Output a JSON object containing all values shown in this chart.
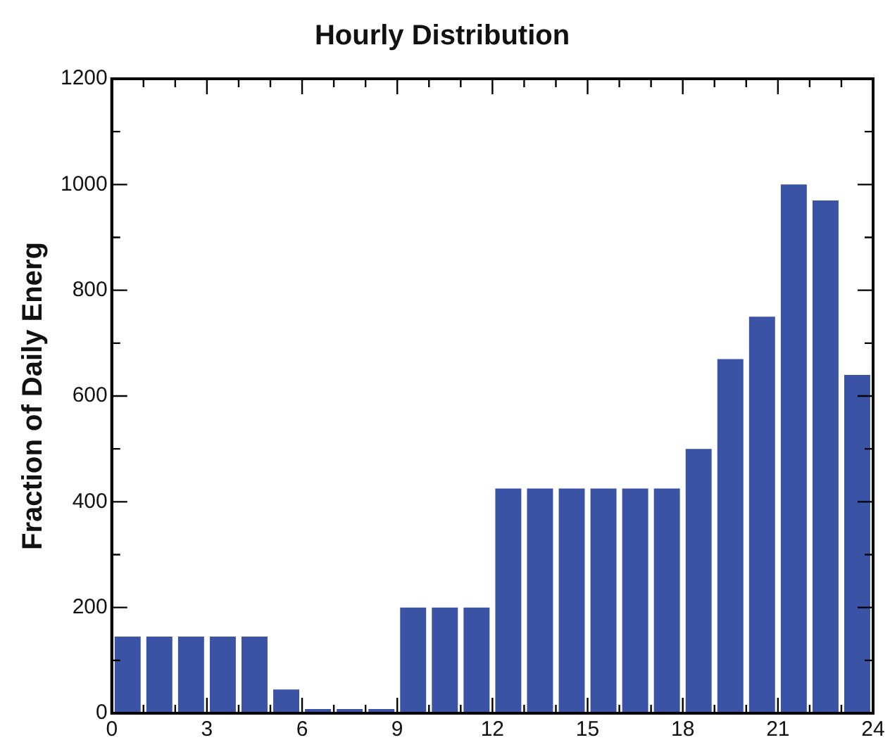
{
  "chart_data": {
    "type": "histogram",
    "title": "Hourly Distribution",
    "ylabel": "Fraction of Daily Energ",
    "bins": [
      0,
      1,
      2,
      3,
      4,
      5,
      6,
      7,
      8,
      9,
      10,
      11,
      12,
      13,
      14,
      15,
      16,
      17,
      18,
      19,
      20,
      21,
      22,
      23,
      24
    ],
    "values": [
      145,
      145,
      145,
      145,
      145,
      45,
      8,
      8,
      8,
      200,
      200,
      200,
      425,
      425,
      425,
      425,
      425,
      425,
      500,
      670,
      750,
      1000,
      970,
      640
    ],
    "color": "#3a53a4",
    "xlim": [
      0,
      24
    ],
    "xticks": [
      0,
      {
        "value": 1,
        "label": null
      },
      {
        "value": 2,
        "label": null
      },
      3,
      {
        "value": 4,
        "label": null
      },
      {
        "value": 5,
        "label": null
      },
      6,
      {
        "value": 7,
        "label": null
      },
      {
        "value": 8,
        "label": null
      },
      9,
      {
        "value": 10,
        "label": null
      },
      {
        "value": 11,
        "label": null
      },
      12,
      {
        "value": 13,
        "label": null
      },
      {
        "value": 14,
        "label": null
      },
      15,
      {
        "value": 16,
        "label": null
      },
      {
        "value": 17,
        "label": null
      },
      18,
      {
        "value": 19,
        "label": null
      },
      {
        "value": 20,
        "label": null
      },
      21,
      {
        "value": 22,
        "label": null
      },
      {
        "value": 23,
        "label": null
      },
      24
    ],
    "ylim": [
      0,
      1200
    ],
    "yticks": [
      0,
      {
        "value": 100,
        "label": null
      },
      200,
      {
        "value": 300,
        "label": null
      },
      400,
      {
        "value": 500,
        "label": null
      },
      600,
      {
        "value": 700,
        "label": null
      },
      800,
      {
        "value": 900,
        "label": null
      },
      1000,
      {
        "value": 1100,
        "label": null
      },
      1200
    ],
    "grid": false,
    "legend": false
  }
}
